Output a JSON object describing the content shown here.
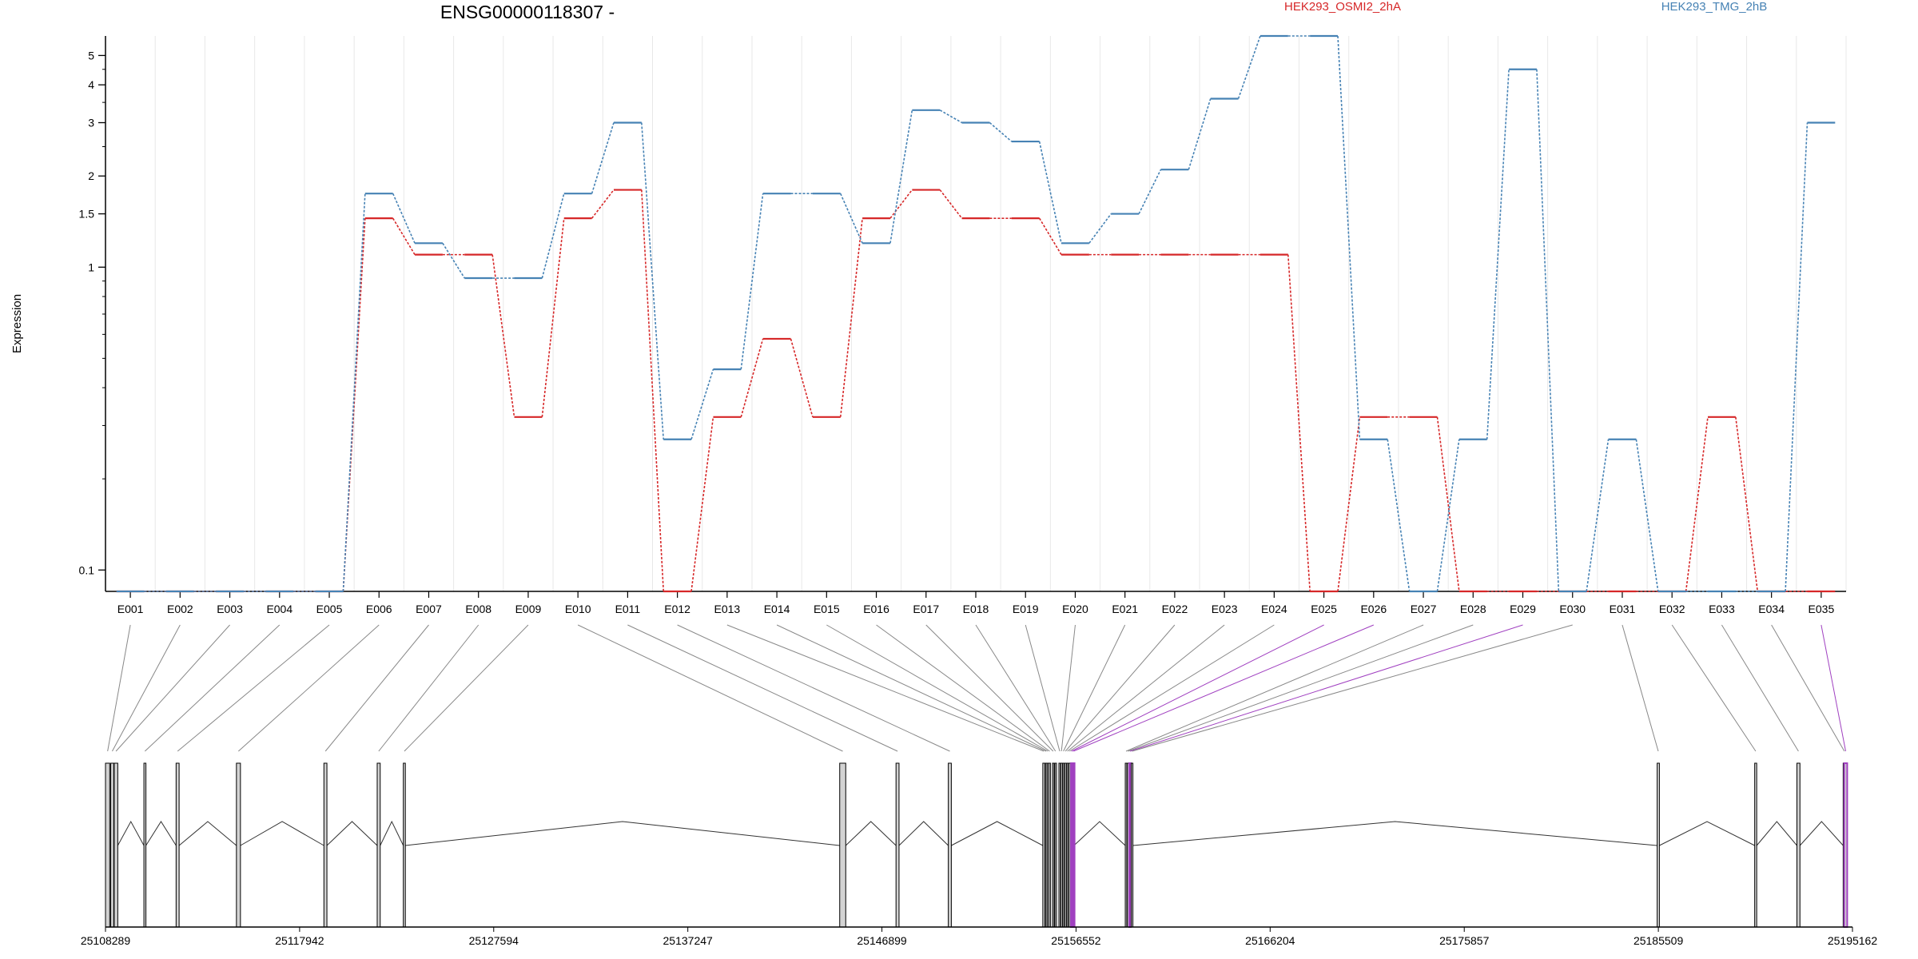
{
  "chart_data": {
    "type": "line",
    "title": "ENSG00000118307 -",
    "ylabel": "Expression",
    "y_scale": "log",
    "yticks": [
      0.1,
      1,
      1.5,
      2,
      3,
      4,
      5
    ],
    "yticks_labels": [
      "0.1",
      "1",
      "1.5",
      "2",
      "3",
      "4",
      "5"
    ],
    "ylim": [
      0.085,
      5.8
    ],
    "grid": "vertical-light",
    "legend_position": "top",
    "categories": [
      "E001",
      "E002",
      "E003",
      "E004",
      "E005",
      "E006",
      "E007",
      "E008",
      "E009",
      "E010",
      "E011",
      "E012",
      "E013",
      "E014",
      "E015",
      "E016",
      "E017",
      "E018",
      "E019",
      "E020",
      "E021",
      "E022",
      "E023",
      "E024",
      "E025",
      "E026",
      "E027",
      "E028",
      "E029",
      "E030",
      "E031",
      "E032",
      "E033",
      "E034",
      "E035"
    ],
    "series": [
      {
        "name": "HEK293_OSMI2_2hA",
        "color": "#d62728",
        "values": [
          0.085,
          0.085,
          0.085,
          0.085,
          0.085,
          1.45,
          1.1,
          1.1,
          0.32,
          1.45,
          1.8,
          0.085,
          0.32,
          0.58,
          0.32,
          1.45,
          1.8,
          1.45,
          1.45,
          1.1,
          1.1,
          1.1,
          1.1,
          1.1,
          0.085,
          0.32,
          0.32,
          0.085,
          0.085,
          0.085,
          0.085,
          0.085,
          0.32,
          0.085,
          0.085
        ]
      },
      {
        "name": "HEK293_TMG_2hB",
        "color": "#4682b4",
        "values": [
          0.085,
          0.085,
          0.085,
          0.085,
          0.085,
          1.75,
          1.2,
          0.92,
          0.92,
          1.75,
          3.0,
          0.27,
          0.46,
          1.75,
          1.75,
          1.2,
          3.3,
          3.0,
          2.6,
          1.2,
          1.5,
          2.1,
          3.6,
          5.8,
          5.8,
          0.27,
          0.085,
          0.27,
          4.5,
          0.085,
          0.27,
          0.085,
          0.085,
          0.085,
          3.0
        ]
      }
    ],
    "gene_model": {
      "coordinate_ticks": [
        "25108289",
        "25117942",
        "25127594",
        "25137247",
        "25146899",
        "25156552",
        "25166204",
        "25175857",
        "25185509",
        "25195162"
      ],
      "x_range": [
        25108289,
        25195162
      ],
      "exon_starts": [
        25108289,
        25108550,
        25108720,
        25110200,
        25111800,
        25114800,
        25119150,
        25121800,
        25123100,
        25144800,
        25147600,
        25150200,
        25154900,
        25155030,
        25155120,
        25155200,
        25155380,
        25155500,
        25155700,
        25155800,
        25155900,
        25156000,
        25156100,
        25156200,
        25156300,
        25156400,
        25159000,
        25159100,
        25159200,
        25159300,
        25185450,
        25190300,
        25192400,
        25194700,
        25194750
      ],
      "exon_ends": [
        25108500,
        25108700,
        25108900,
        25110300,
        25111950,
        25115000,
        25119300,
        25121950,
        25123200,
        25145100,
        25147750,
        25150350,
        25155000,
        25155100,
        25155180,
        25155280,
        25155450,
        25155560,
        25155780,
        25155850,
        25155950,
        25156050,
        25156150,
        25156250,
        25156350,
        25156450,
        25159080,
        25159180,
        25159280,
        25159380,
        25185560,
        25190400,
        25192550,
        25194820,
        25194900
      ],
      "highlighted_exons": [
        "E025",
        "E026",
        "E029",
        "E035"
      ],
      "highlight_color": "#a040c0"
    }
  }
}
